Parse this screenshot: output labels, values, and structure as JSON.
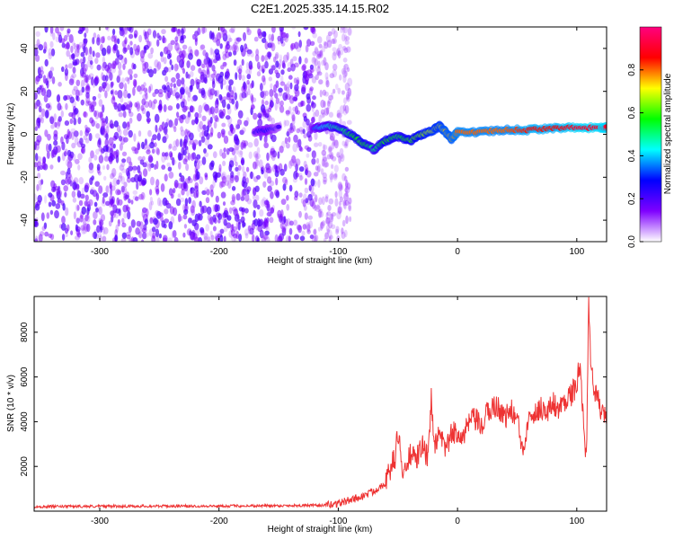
{
  "chart_data": [
    {
      "type": "heatmap",
      "title": "C2E1.2025.335.14.15.R02",
      "xlabel": "Height of straight line (km)",
      "ylabel": "Frequency (Hz)",
      "xlim": [
        -355,
        125
      ],
      "ylim": [
        -50,
        50
      ],
      "x_ticks": [
        -300,
        -200,
        -100,
        0,
        100
      ],
      "y_ticks": [
        -40,
        -20,
        0,
        20,
        40
      ],
      "colorbar": {
        "label": "Normalized spectral amplitude",
        "range": [
          0.0,
          1.0
        ],
        "ticks": [
          0.0,
          0.2,
          0.4,
          0.6,
          0.8
        ],
        "tick_labels": [
          "0.0",
          "0.2",
          "0.4",
          "0.6",
          "0.8"
        ],
        "colormap": [
          "#ffffff",
          "#7f00ff",
          "#0000ff",
          "#00ffff",
          "#00ff00",
          "#ffff00",
          "#ff0000",
          "#ff007f"
        ]
      },
      "signal_trace": {
        "x": [
          -170,
          -160,
          -150,
          -120,
          -110,
          -100,
          -90,
          -80,
          -70,
          -60,
          -50,
          -40,
          -30,
          -20,
          -15,
          -10,
          -5,
          0,
          20,
          40,
          60,
          80,
          100,
          120,
          125
        ],
        "y": [
          1,
          2,
          3,
          3,
          4,
          3,
          0,
          -4,
          -7,
          -3,
          -1,
          -3,
          0,
          2,
          4,
          1,
          -2,
          1,
          1,
          2,
          2,
          3,
          3,
          3,
          3
        ],
        "amplitude": [
          0.25,
          0.3,
          0.2,
          0.35,
          0.45,
          0.5,
          0.55,
          0.6,
          0.5,
          0.6,
          0.55,
          0.6,
          0.65,
          0.7,
          0.7,
          0.75,
          0.75,
          0.8,
          0.8,
          0.8,
          0.85,
          0.85,
          0.9,
          0.9,
          0.9
        ]
      },
      "noise_region_x": [
        -355,
        -90
      ]
    },
    {
      "type": "line",
      "xlabel": "Height of straight line (km)",
      "ylabel": "SNR (10 * v/v)",
      "xlim": [
        -355,
        125
      ],
      "ylim": [
        0,
        9600
      ],
      "x_ticks": [
        -300,
        -200,
        -100,
        0,
        100
      ],
      "y_ticks": [
        2000,
        4000,
        6000,
        8000
      ],
      "series": [
        {
          "name": "SNR",
          "color": "#ee3333",
          "x": [
            -355,
            -300,
            -200,
            -110,
            -100,
            -90,
            -80,
            -70,
            -60,
            -52,
            -50,
            -45,
            -40,
            -35,
            -30,
            -25,
            -22,
            -20,
            -15,
            -10,
            -5,
            0,
            5,
            10,
            15,
            20,
            25,
            30,
            35,
            40,
            45,
            50,
            55,
            60,
            65,
            70,
            75,
            80,
            85,
            90,
            95,
            100,
            102,
            105,
            108,
            110,
            112,
            115,
            120,
            125
          ],
          "y": [
            200,
            220,
            230,
            260,
            350,
            500,
            650,
            900,
            1300,
            2500,
            3600,
            1400,
            2600,
            2200,
            3000,
            2300,
            5100,
            3000,
            3300,
            2800,
            3400,
            3600,
            3300,
            4000,
            4100,
            3700,
            4400,
            4700,
            4600,
            4200,
            4500,
            4100,
            2600,
            4600,
            4300,
            4700,
            4300,
            4900,
            4500,
            5000,
            5200,
            5600,
            6500,
            4800,
            2300,
            9500,
            6200,
            5400,
            4600,
            3900
          ]
        }
      ]
    }
  ]
}
